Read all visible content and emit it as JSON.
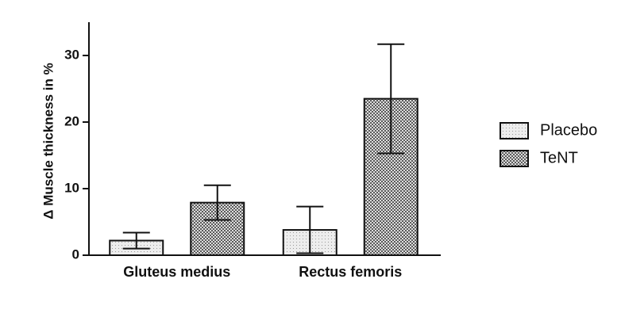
{
  "chart_data": {
    "type": "bar",
    "y_label": "Δ Muscle thickness in %",
    "categories": [
      "Gluteus medius",
      "Rectus femoris"
    ],
    "series": [
      {
        "name": "Placebo",
        "color": "#ededed",
        "pattern": "dots",
        "values": [
          2.2,
          3.8
        ],
        "errors": [
          1.2,
          3.5
        ]
      },
      {
        "name": "TeNT",
        "color": "#5a5a5a",
        "pattern": "checker",
        "values": [
          7.9,
          23.5
        ],
        "errors": [
          2.6,
          8.2
        ]
      }
    ],
    "ylim": [
      0,
      35
    ],
    "yticks": [
      0,
      10,
      20,
      30
    ],
    "grid": false
  }
}
